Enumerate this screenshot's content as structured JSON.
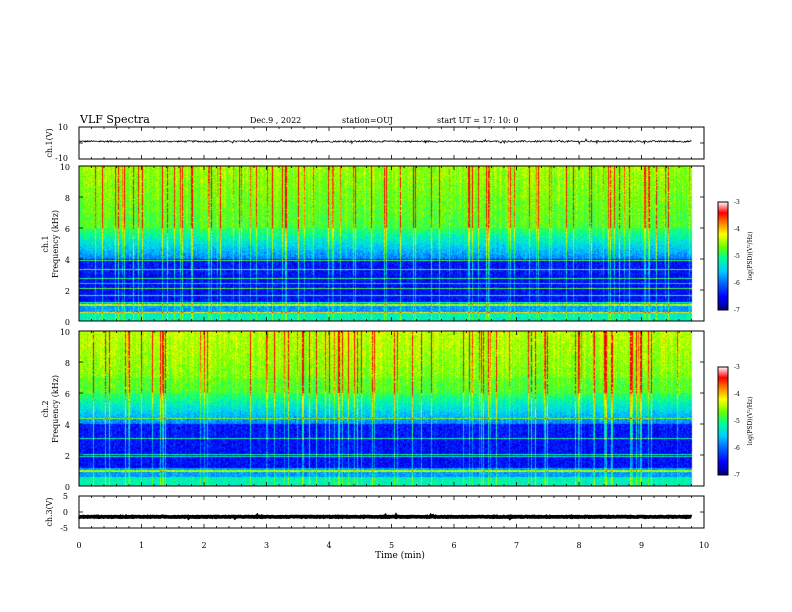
{
  "header": {
    "title": "VLF Spectra",
    "date": "Dec.9 , 2022",
    "station": "station=OUJ",
    "start_ut": "start  UT =   17: 10: 0"
  },
  "chart_data": [
    {
      "type": "line",
      "panel": "ch1-waveform",
      "ylabel": "ch.1(V)",
      "x_range": [
        0,
        10
      ],
      "xlim": [
        0,
        10
      ],
      "ylim": [
        -10,
        10
      ],
      "y_ticks": [
        "10",
        "-10"
      ],
      "trace_level": 1.0,
      "trace_noise": 1.0,
      "trace_end_min": 9.8,
      "trace_color": "#000000"
    },
    {
      "type": "heatmap",
      "panel": "ch1-spectrogram",
      "ylabel_top": "ch.1",
      "ylabel": "Frequency (kHz)",
      "xlim": [
        0,
        10
      ],
      "ylim": [
        0,
        10
      ],
      "y_ticks": [
        "0",
        "2",
        "4",
        "6",
        "8",
        "10"
      ],
      "data_end_min": 9.8,
      "colorbar": {
        "label": "log(PSD)(V²/Hz)",
        "range": [
          -7,
          -3
        ],
        "ticks": [
          "-3",
          "-4",
          "-5",
          "-6",
          "-7"
        ]
      }
    },
    {
      "type": "heatmap",
      "panel": "ch2-spectrogram",
      "ylabel_top": "ch.2",
      "ylabel": "Frequency (kHz)",
      "xlim": [
        0,
        10
      ],
      "ylim": [
        0,
        10
      ],
      "y_ticks": [
        "0",
        "2",
        "4",
        "6",
        "8",
        "10"
      ],
      "data_end_min": 9.8,
      "colorbar": {
        "label": "log(PSD)(V²/Hz)",
        "range": [
          -7,
          -3
        ],
        "ticks": [
          "-3",
          "-4",
          "-5",
          "-6",
          "-7"
        ]
      }
    },
    {
      "type": "line",
      "panel": "ch3-waveform",
      "ylabel": "ch.3(V)",
      "xlim": [
        0,
        10
      ],
      "ylim": [
        -5,
        5
      ],
      "y_ticks": [
        "5",
        "0",
        "-5"
      ],
      "trace_level": -1.5,
      "trace_noise": 0.2,
      "trace_end_min": 9.8,
      "trace_color": "#000000"
    }
  ],
  "xaxis": {
    "label": "Time (min)",
    "ticks": [
      "0",
      "1",
      "2",
      "3",
      "4",
      "5",
      "6",
      "7",
      "8",
      "9",
      "10"
    ]
  },
  "colormap": [
    "#00007a",
    "#0000ff",
    "#0066ff",
    "#00ccff",
    "#00ff99",
    "#66ff00",
    "#ffff00",
    "#ff8800",
    "#ff0000",
    "#ffffff"
  ]
}
